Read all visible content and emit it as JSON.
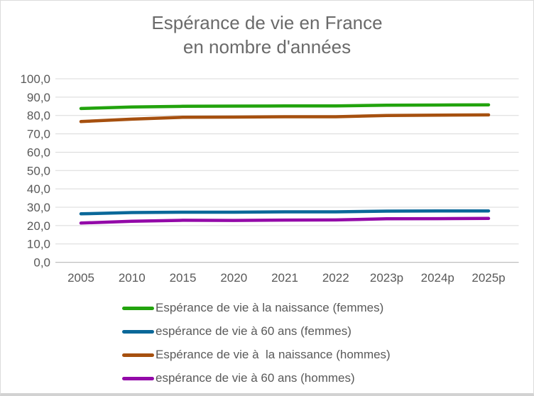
{
  "title": {
    "line1": "Espérance de vie en France",
    "line2": "en nombre d'années"
  },
  "chart_data": {
    "type": "line",
    "title": "Espérance de vie en France en nombre d'années",
    "x_labels": [
      "2005",
      "2010",
      "2015",
      "2020",
      "2021",
      "2022",
      "2023p",
      "2024p",
      "2025p"
    ],
    "y_tick_labels": [
      "100,0",
      "90,0",
      "80,0",
      "70,0",
      "60,0",
      "50,0",
      "40,0",
      "30,0",
      "20,0",
      "10,0",
      "0,0"
    ],
    "ylim": [
      0,
      100
    ],
    "grid": true,
    "legend_position": "bottom-left",
    "series": [
      {
        "id": "vie-naissance-femmes",
        "name": "Espérance de vie à la naissance (femmes)",
        "color": "#22A30D",
        "values": [
          83.8,
          84.6,
          85.0,
          85.1,
          85.2,
          85.2,
          85.6,
          85.7,
          85.8
        ]
      },
      {
        "id": "vie-60-ans-femmes",
        "name": "espérance de vie à 60 ans (femmes)",
        "color": "#0A6899",
        "values": [
          26.4,
          27.1,
          27.3,
          27.3,
          27.5,
          27.5,
          27.9,
          28.0,
          28.0
        ]
      },
      {
        "id": "vie-naissance-hommes",
        "name": "Espérance de vie à  la naissance (hommes)",
        "color": "#A6500F",
        "values": [
          76.7,
          78.0,
          79.0,
          79.1,
          79.3,
          79.3,
          80.0,
          80.2,
          80.3
        ]
      },
      {
        "id": "vie-60-ans-hommes",
        "name": "espérance de vie à 60 ans (hommes)",
        "color": "#9309A8",
        "values": [
          21.4,
          22.4,
          22.9,
          22.8,
          23.0,
          23.1,
          23.7,
          23.8,
          23.9
        ]
      }
    ],
    "colors": {
      "grid": "#D9D9D9",
      "axis": "#BFBFBF",
      "tick_text": "#595959",
      "title_text": "#6A6A6A"
    }
  }
}
